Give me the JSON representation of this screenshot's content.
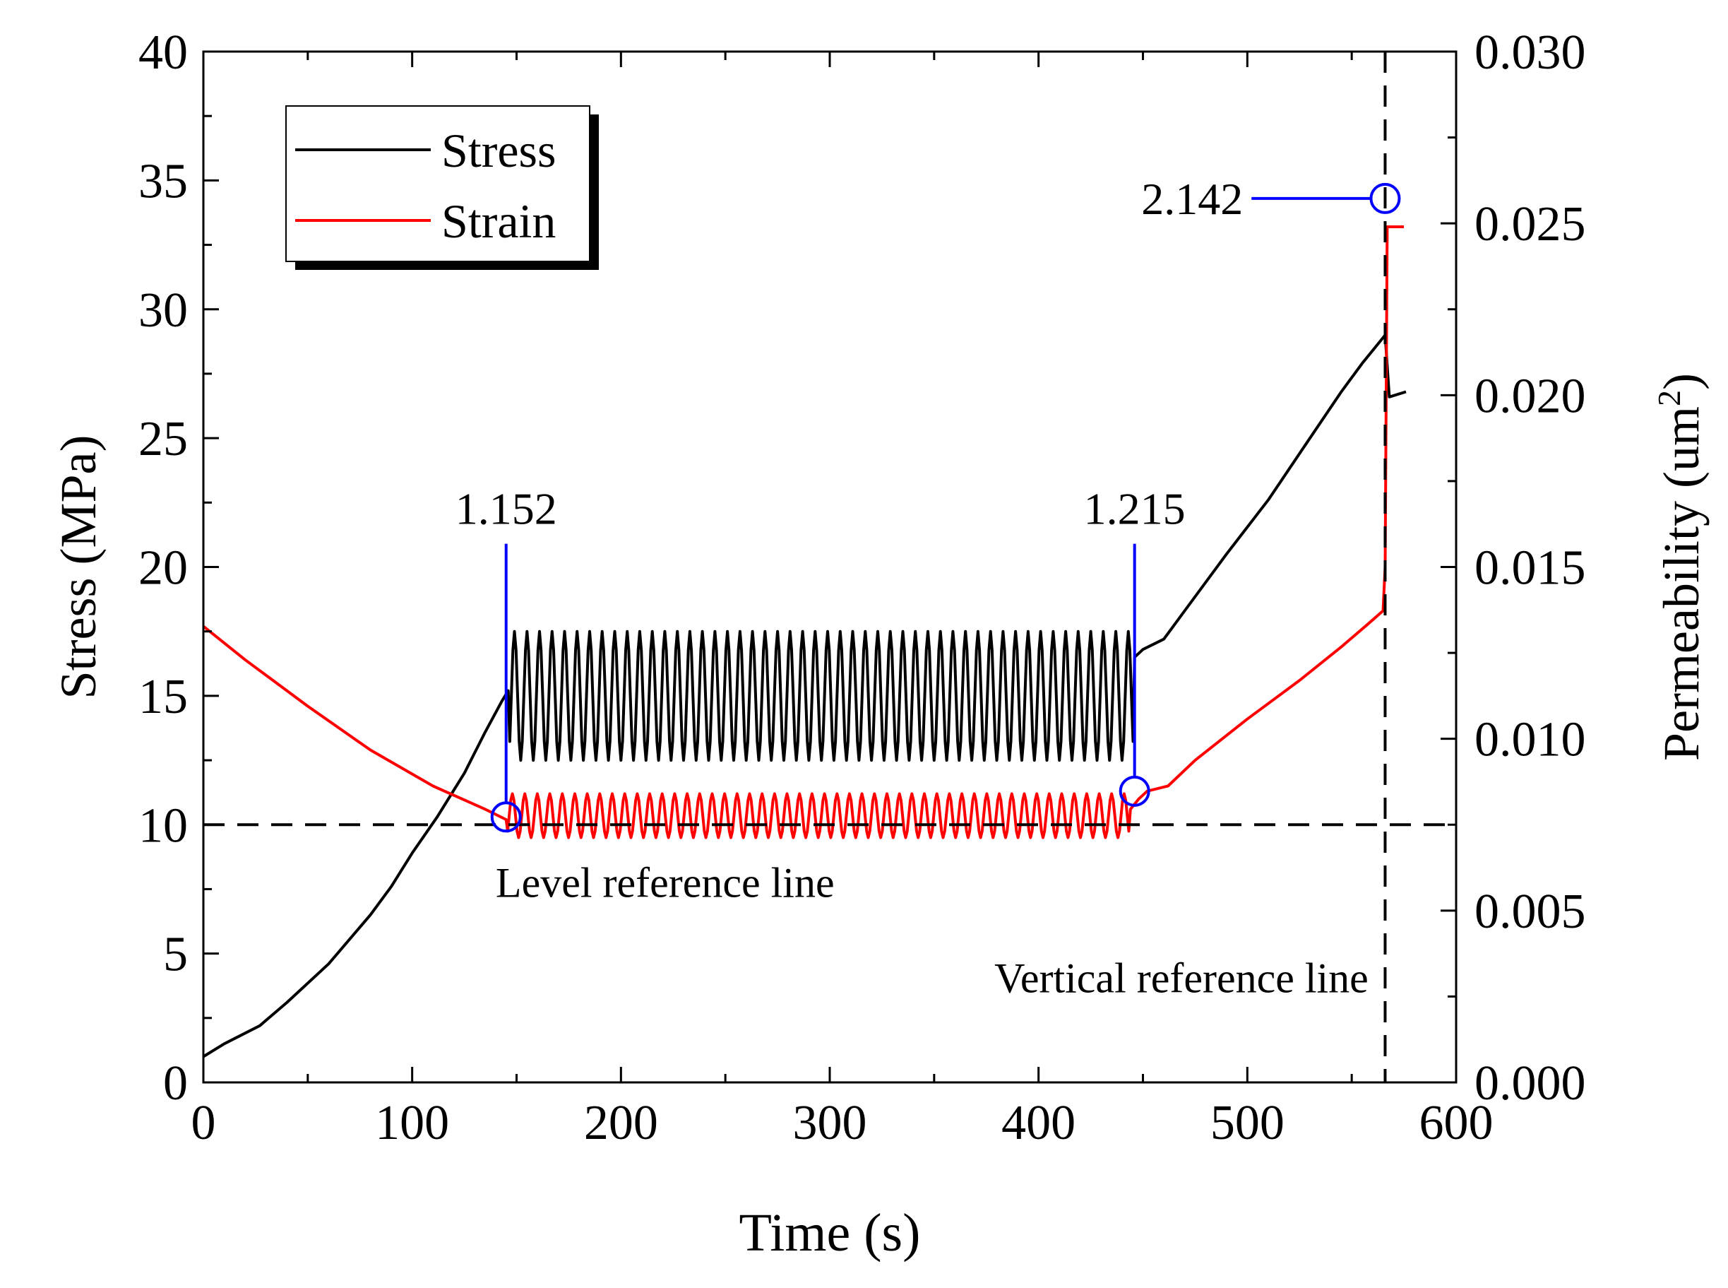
{
  "chart_data": {
    "type": "line",
    "title": "",
    "xlabel": "Time (s)",
    "ylabel": "Stress (MPa)",
    "y2label_main": "Permeability (um",
    "y2label_sup": "2",
    "y2label_end": ")",
    "xlim": [
      0,
      600
    ],
    "ylim": [
      0,
      40
    ],
    "y2lim": [
      0,
      0.03
    ],
    "x_ticks": [
      "0",
      "100",
      "200",
      "300",
      "400",
      "500",
      "600"
    ],
    "y_ticks": [
      "0",
      "5",
      "10",
      "15",
      "20",
      "25",
      "30",
      "35",
      "40"
    ],
    "y2_ticks": [
      "0.000",
      "0.005",
      "0.010",
      "0.015",
      "0.020",
      "0.025",
      "0.030"
    ],
    "legend": {
      "position": "top-left",
      "entries": [
        {
          "label": "Stress",
          "color": "#000000"
        },
        {
          "label": "Strain",
          "color": "#ff0000"
        }
      ]
    },
    "series": [
      {
        "name": "Stress",
        "color": "#000000",
        "axis": "left",
        "points": [
          [
            0,
            1.0
          ],
          [
            10,
            1.5
          ],
          [
            27,
            2.2
          ],
          [
            40,
            3.1
          ],
          [
            60,
            4.6
          ],
          [
            80,
            6.5
          ],
          [
            90,
            7.6
          ],
          [
            100,
            8.9
          ],
          [
            112,
            10.3
          ],
          [
            125,
            12.0
          ],
          [
            135,
            13.6
          ],
          [
            143,
            14.8
          ],
          [
            146,
            15.2
          ]
        ],
        "oscillation": {
          "t_start": 146,
          "t_end": 446,
          "min": 12.5,
          "max": 17.5,
          "cycles": 50
        },
        "tail_points": [
          [
            446,
            16.5
          ],
          [
            450,
            16.8
          ],
          [
            460,
            17.2
          ],
          [
            470,
            18.3
          ],
          [
            490,
            20.5
          ],
          [
            510,
            22.6
          ],
          [
            530,
            25.0
          ],
          [
            545,
            26.8
          ],
          [
            555,
            27.9
          ],
          [
            563,
            28.7
          ],
          [
            566,
            29.0
          ],
          [
            568,
            26.6
          ],
          [
            576,
            26.8
          ]
        ]
      },
      {
        "name": "Strain",
        "color": "#ff0000",
        "axis": "left",
        "points": [
          [
            0,
            17.7
          ],
          [
            20,
            16.4
          ],
          [
            50,
            14.6
          ],
          [
            80,
            12.9
          ],
          [
            110,
            11.5
          ],
          [
            135,
            10.6
          ],
          [
            145,
            10.2
          ]
        ],
        "oscillation": {
          "t_start": 145,
          "t_end": 444,
          "min": 9.5,
          "max": 11.2,
          "cycles": 50
        },
        "tail_points": [
          [
            444,
            10.6
          ],
          [
            448,
            11.0
          ],
          [
            452,
            11.3
          ],
          [
            462,
            11.5
          ],
          [
            475,
            12.5
          ],
          [
            500,
            14.1
          ],
          [
            525,
            15.6
          ],
          [
            545,
            16.9
          ],
          [
            558,
            17.8
          ],
          [
            565,
            18.3
          ],
          [
            566,
            20.0
          ],
          [
            567,
            33.2
          ],
          [
            575,
            33.2
          ]
        ]
      }
    ],
    "reference_lines": [
      {
        "type": "horizontal",
        "y": 10,
        "label": "Level reference line"
      },
      {
        "type": "vertical",
        "x": 566,
        "label": "Vertical reference line"
      }
    ],
    "annotations": [
      {
        "label": "1.152",
        "color": "#0000ff",
        "x": 145,
        "y": 10.3,
        "side": "above"
      },
      {
        "label": "1.215",
        "color": "#0000ff",
        "x": 446,
        "y": 11.3,
        "side": "above"
      },
      {
        "label": "2.142",
        "color": "#0000ff",
        "x": 566,
        "y": 34.3,
        "side": "left"
      }
    ]
  }
}
